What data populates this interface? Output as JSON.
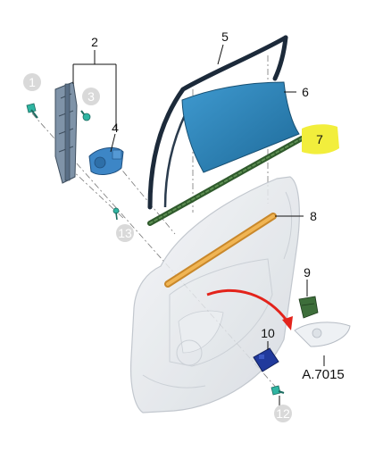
{
  "diagram": {
    "callouts": {
      "c1": "1",
      "c2": "2",
      "c3": "3",
      "c4": "4",
      "c5": "5",
      "c6": "6",
      "c7": "7",
      "c8": "8",
      "c9": "9",
      "c10": "10",
      "c12": "12",
      "c13": "13"
    },
    "reference_label": "A.7015",
    "highlighted_callout": "7",
    "colors": {
      "highlight": "#f2ee3c",
      "glass": "#2a7fb4",
      "glass_frame": "#1c2a3a",
      "belt_strip": "#3f6e38",
      "inner_seal": "#e9a13a",
      "regulator": "#5a6f86",
      "motor": "#3d86c6",
      "clip": "#3d6e3a",
      "module": "#213a9c",
      "arrow": "#e3231b",
      "door_panel": "#dfe3e8"
    },
    "icons": {
      "bolt": "bolt-icon",
      "screw": "screw-icon",
      "clip": "clip-icon"
    }
  }
}
